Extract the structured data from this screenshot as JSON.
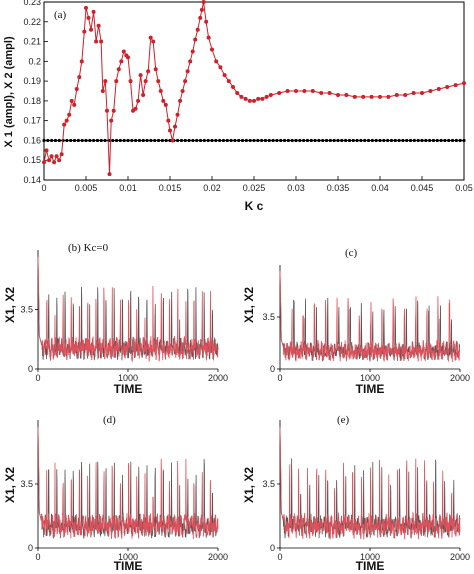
{
  "chart_data": [
    {
      "id": "a",
      "type": "line",
      "panel_label": "(a)",
      "xlabel": "K c",
      "ylabel": "X 1 (ampl), X 2 (ampl)",
      "xlim": [
        0,
        0.05
      ],
      "ylim": [
        0.14,
        0.23
      ],
      "xticks": [
        "0",
        "0.005",
        "0.01",
        "0.015",
        "0.02",
        "0.025",
        "0.03",
        "0.035",
        "0.04",
        "0.045",
        "0.05"
      ],
      "yticks": [
        "0.14",
        "0.15",
        "0.16",
        "0.17",
        "0.18",
        "0.19",
        "0.2",
        "0.21",
        "0.22",
        "0.23"
      ],
      "series": [
        {
          "color": "#d0202a",
          "marker": "dot",
          "x": [
            0.0,
            0.0003,
            0.0006,
            0.0009,
            0.0012,
            0.0015,
            0.0018,
            0.0021,
            0.0024,
            0.0027,
            0.003,
            0.0033,
            0.0036,
            0.0039,
            0.0042,
            0.0045,
            0.0048,
            0.005,
            0.0053,
            0.0056,
            0.0059,
            0.0062,
            0.0065,
            0.0068,
            0.007,
            0.0073,
            0.0075,
            0.0078,
            0.008,
            0.0083,
            0.0086,
            0.0089,
            0.0092,
            0.0095,
            0.0098,
            0.01,
            0.0103,
            0.0106,
            0.0109,
            0.0112,
            0.0115,
            0.0118,
            0.0121,
            0.0124,
            0.0127,
            0.013,
            0.0133,
            0.0136,
            0.0139,
            0.0142,
            0.0145,
            0.0148,
            0.015,
            0.0153,
            0.0156,
            0.0159,
            0.0162,
            0.0165,
            0.0168,
            0.0171,
            0.0174,
            0.0177,
            0.018,
            0.0183,
            0.0186,
            0.0188,
            0.019,
            0.0193,
            0.0196,
            0.02,
            0.0205,
            0.021,
            0.0215,
            0.022,
            0.0225,
            0.023,
            0.0235,
            0.024,
            0.0245,
            0.025,
            0.0255,
            0.026,
            0.0265,
            0.027,
            0.028,
            0.029,
            0.03,
            0.031,
            0.032,
            0.033,
            0.034,
            0.035,
            0.036,
            0.037,
            0.038,
            0.039,
            0.04,
            0.041,
            0.042,
            0.043,
            0.044,
            0.045,
            0.046,
            0.047,
            0.048,
            0.049,
            0.05
          ],
          "y": [
            0.149,
            0.155,
            0.15,
            0.152,
            0.149,
            0.152,
            0.15,
            0.153,
            0.168,
            0.17,
            0.173,
            0.18,
            0.178,
            0.186,
            0.192,
            0.2,
            0.215,
            0.227,
            0.222,
            0.216,
            0.225,
            0.21,
            0.218,
            0.21,
            0.185,
            0.19,
            0.175,
            0.143,
            0.17,
            0.175,
            0.19,
            0.196,
            0.2,
            0.205,
            0.203,
            0.202,
            0.19,
            0.175,
            0.176,
            0.18,
            0.193,
            0.183,
            0.19,
            0.195,
            0.212,
            0.21,
            0.196,
            0.19,
            0.185,
            0.18,
            0.178,
            0.17,
            0.165,
            0.16,
            0.167,
            0.173,
            0.18,
            0.185,
            0.19,
            0.195,
            0.2,
            0.205,
            0.211,
            0.216,
            0.222,
            0.226,
            0.23,
            0.22,
            0.212,
            0.206,
            0.2,
            0.197,
            0.193,
            0.19,
            0.187,
            0.184,
            0.182,
            0.181,
            0.18,
            0.18,
            0.181,
            0.181,
            0.182,
            0.183,
            0.184,
            0.185,
            0.185,
            0.185,
            0.185,
            0.184,
            0.184,
            0.183,
            0.183,
            0.182,
            0.182,
            0.182,
            0.182,
            0.182,
            0.183,
            0.183,
            0.184,
            0.184,
            0.185,
            0.186,
            0.187,
            0.188,
            0.189
          ]
        },
        {
          "color": "#000000",
          "marker": "dot",
          "x": [
            0.0,
            0.05
          ],
          "y": [
            0.16,
            0.16
          ],
          "dense_markers": 110
        }
      ]
    },
    {
      "id": "b",
      "type": "line",
      "panel_label": "(b) Kc=0",
      "xlabel": "TIME",
      "ylabel": "X1, X2",
      "xlim": [
        0,
        2000
      ],
      "ylim": [
        0,
        7
      ],
      "xticks": [
        "0",
        "1000",
        "2000"
      ],
      "yticks": [
        "0",
        "3.5"
      ],
      "spikes": 22
    },
    {
      "id": "c",
      "type": "line",
      "panel_label": "(c)",
      "xlabel": "TIME",
      "ylabel": "X1, X2",
      "xlim": [
        0,
        2000
      ],
      "ylim": [
        0,
        7
      ],
      "xticks": [
        "0",
        "1000",
        "2000"
      ],
      "yticks": [
        "0",
        "3.5"
      ],
      "spikes": 16
    },
    {
      "id": "d",
      "type": "line",
      "panel_label": "(d)",
      "xlabel": "TIME",
      "ylabel": "X1, X2",
      "xlim": [
        0,
        2000
      ],
      "ylim": [
        0,
        7
      ],
      "xticks": [
        "0",
        "1000",
        "2000"
      ],
      "yticks": [
        "0",
        "3.5"
      ],
      "spikes": 22
    },
    {
      "id": "e",
      "type": "line",
      "panel_label": "(e)",
      "xlabel": "TIME",
      "ylabel": "X1, X2",
      "xlim": [
        0,
        2000
      ],
      "ylim": [
        0,
        7
      ],
      "xticks": [
        "0",
        "1000",
        "2000"
      ],
      "yticks": [
        "0",
        "3.5"
      ],
      "spikes": 20
    }
  ],
  "colors": {
    "red": "#e0505a",
    "gray": "#555555",
    "accent_red": "#d0202a",
    "black": "#000000"
  }
}
